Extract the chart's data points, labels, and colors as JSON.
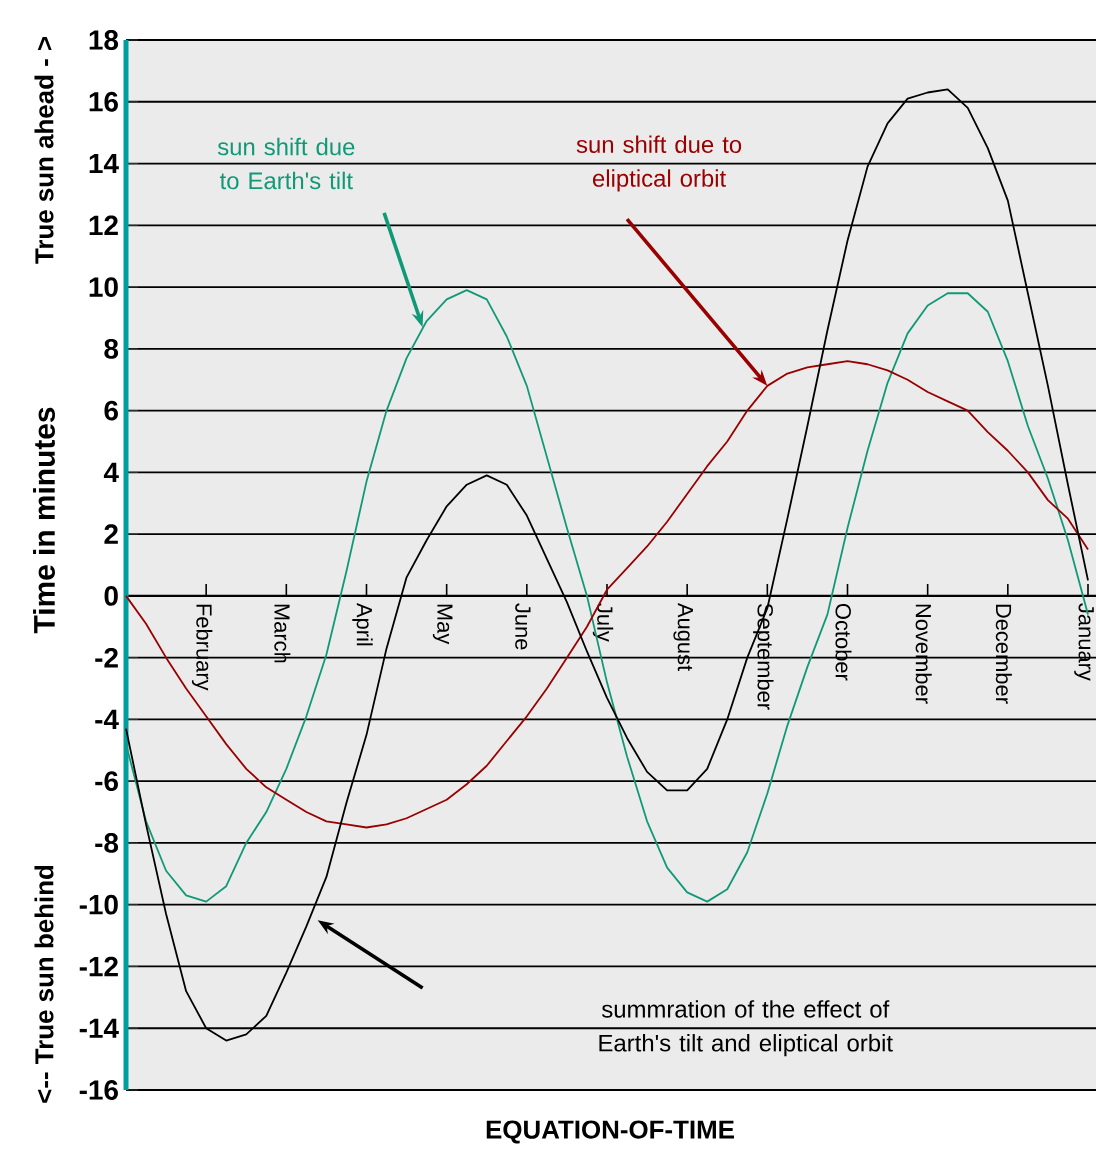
{
  "chart_data": {
    "type": "line",
    "xlabel": "EQUATION-OF-TIME",
    "ylabel": "Time in minutes",
    "categories": [
      null,
      null,
      null,
      null,
      "February",
      null,
      null,
      null,
      "March",
      null,
      null,
      null,
      "April",
      null,
      null,
      null,
      "May",
      null,
      null,
      null,
      "June",
      null,
      null,
      null,
      "July",
      null,
      null,
      null,
      "August",
      null,
      null,
      null,
      "September",
      null,
      null,
      null,
      "October",
      null,
      null,
      null,
      "November",
      null,
      null,
      null,
      "December",
      null,
      null,
      null,
      "January"
    ],
    "ylim": [
      -16,
      18
    ],
    "yticks": [
      -16,
      -14,
      -12,
      -10,
      -8,
      -6,
      -4,
      -2,
      0,
      2,
      4,
      6,
      8,
      10,
      12,
      14,
      16,
      18
    ],
    "grid": "y",
    "line_style": "solid",
    "series": [
      {
        "color": "#119977",
        "values": [
          -4.8,
          -7.3,
          -8.9,
          -9.7,
          -9.9,
          -9.4,
          -8.0,
          -7.0,
          -5.6,
          -3.9,
          -1.9,
          0.8,
          3.7,
          6.0,
          7.7,
          8.9,
          9.6,
          9.9,
          9.6,
          8.4,
          6.8,
          4.5,
          2.2,
          0,
          -2.8,
          -5.2,
          -7.3,
          -8.8,
          -9.6,
          -9.9,
          -9.5,
          -8.3,
          -6.4,
          -4.2,
          -2.3,
          -0.6,
          2.2,
          4.7,
          6.9,
          8.5,
          9.4,
          9.8,
          9.8,
          9.2,
          7.6,
          5.5,
          3.8,
          1.8,
          -0.6
        ]
      },
      {
        "color": "#990000",
        "values": [
          0,
          -0.9,
          -2.0,
          -3.0,
          -3.9,
          -4.8,
          -5.6,
          -6.2,
          -6.6,
          -7.0,
          -7.3,
          -7.4,
          -7.5,
          -7.4,
          -7.2,
          -6.9,
          -6.6,
          -6.1,
          -5.5,
          -4.7,
          -3.9,
          -3.0,
          -2.0,
          -1.0,
          0.2,
          0.9,
          1.6,
          2.4,
          3.3,
          4.2,
          5.0,
          6.0,
          6.8,
          7.2,
          7.4,
          7.5,
          7.6,
          7.5,
          7.3,
          7.0,
          6.6,
          6.3,
          6.0,
          5.3,
          4.7,
          4.0,
          3.1,
          2.5,
          1.5
        ]
      },
      {
        "color": "#000000",
        "values": [
          -4.3,
          -7.4,
          -10.3,
          -12.8,
          -14.0,
          -14.4,
          -14.2,
          -13.6,
          -12.2,
          -10.7,
          -9.1,
          -6.7,
          -4.5,
          -1.7,
          0.6,
          1.8,
          2.9,
          3.6,
          3.9,
          3.6,
          2.6,
          1.2,
          -0.2,
          -1.8,
          -3.3,
          -4.6,
          -5.7,
          -6.3,
          -6.3,
          -5.6,
          -4.0,
          -2.0,
          -0.4,
          2.5,
          5.5,
          8.6,
          11.5,
          13.9,
          15.3,
          16.1,
          16.3,
          16.4,
          15.8,
          14.5,
          12.8,
          9.8,
          6.8,
          3.6,
          0.5
        ]
      }
    ],
    "annotations": [
      "sun shift due to Earth's tilt",
      {
        "text": "sun shift due to eliptical orbit",
        "x": "September",
        "y": 6.8
      },
      "summration of the effect of Earth's tilt and eliptical orbit",
      "True sun ahead - >",
      "<-- True sun behind"
    ]
  }
}
